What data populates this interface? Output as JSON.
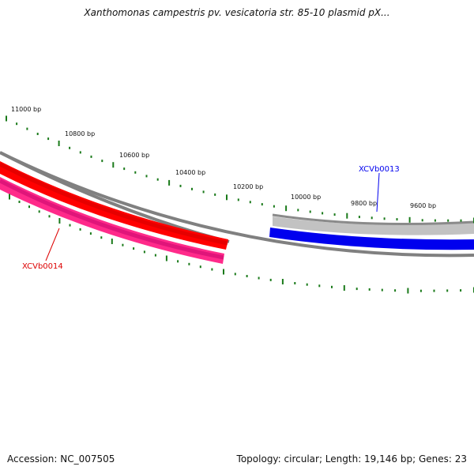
{
  "title": "Xanthomonas campestris pv. vesicatoria str. 85-10 plasmid pX...",
  "footer": {
    "accession": "Accession: NC_007505",
    "summary": "Topology: circular; Length: 19,146 bp; Genes: 23"
  },
  "tick_labels": [
    "11000 bp",
    "10800 bp",
    "10600 bp",
    "10400 bp",
    "10200 bp",
    "10000 bp",
    "9800 bp",
    "9600 bp"
  ],
  "genes": [
    {
      "name": "XCVb0013",
      "strand": "forward",
      "color": "#0000ee"
    },
    {
      "name": "XCVb0014",
      "strand": "reverse",
      "color": "#dd0000"
    }
  ],
  "colors": {
    "backbone": "#808080",
    "tick": "#1a7a1a",
    "gene_xcvb0013_fill": "#0000ee",
    "gene_xcvb0013_shadow": "#b8b8b8",
    "gene_xcvb0014_fill": "#ff0000",
    "gene_xcvb0014_pink": "#ff2a8a"
  }
}
